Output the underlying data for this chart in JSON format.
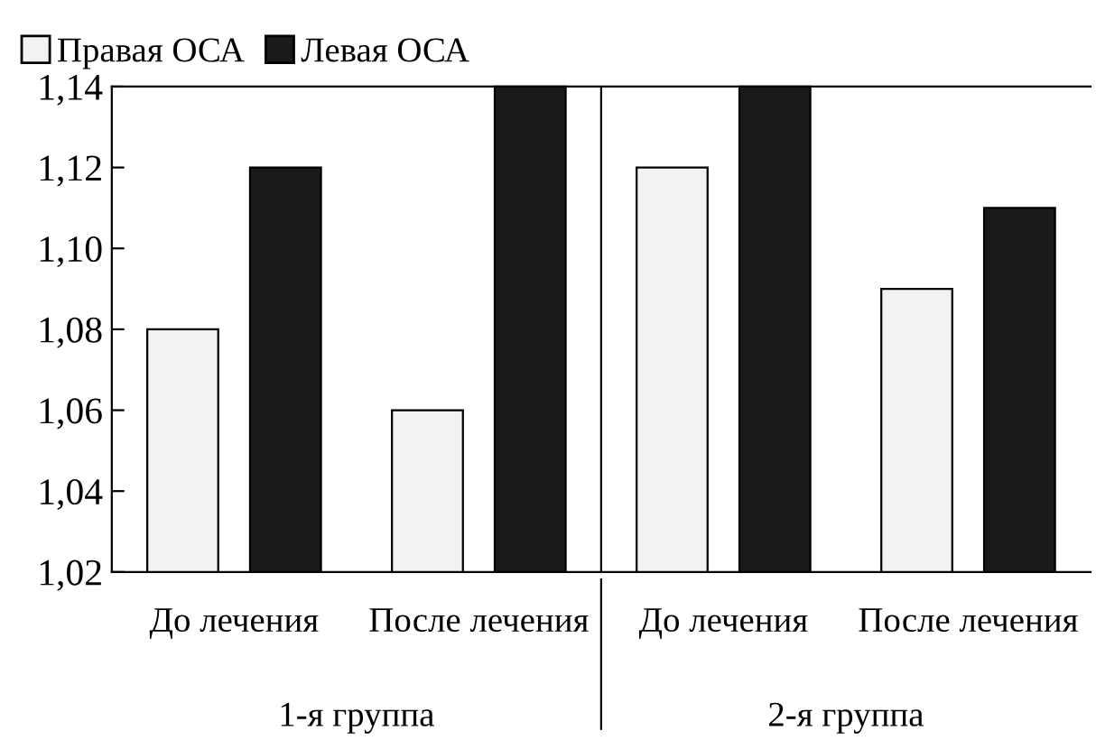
{
  "chart_data": {
    "type": "bar",
    "categories": [
      "До лечения",
      "После лечения",
      "До лечения",
      "После лечения"
    ],
    "series": [
      {
        "name": "Правая ОСА",
        "color": "#f2f2f2",
        "values": [
          1.08,
          1.06,
          1.12,
          1.09
        ]
      },
      {
        "name": "Левая ОСА",
        "color": "#1a1a1a",
        "values": [
          1.12,
          1.14,
          1.14,
          1.11
        ]
      }
    ],
    "ylim": [
      1.02,
      1.14
    ],
    "yticks": [
      {
        "value": 1.02,
        "label": "1,02"
      },
      {
        "value": 1.04,
        "label": "1,04"
      },
      {
        "value": 1.06,
        "label": "1,06"
      },
      {
        "value": 1.08,
        "label": "1,08"
      },
      {
        "value": 1.1,
        "label": "1,10"
      },
      {
        "value": 1.12,
        "label": "1,12"
      },
      {
        "value": 1.14,
        "label": "1,14"
      }
    ],
    "annotations": [
      "1-я группа",
      "2-я группа"
    ],
    "legend": "top left",
    "grid": false
  }
}
